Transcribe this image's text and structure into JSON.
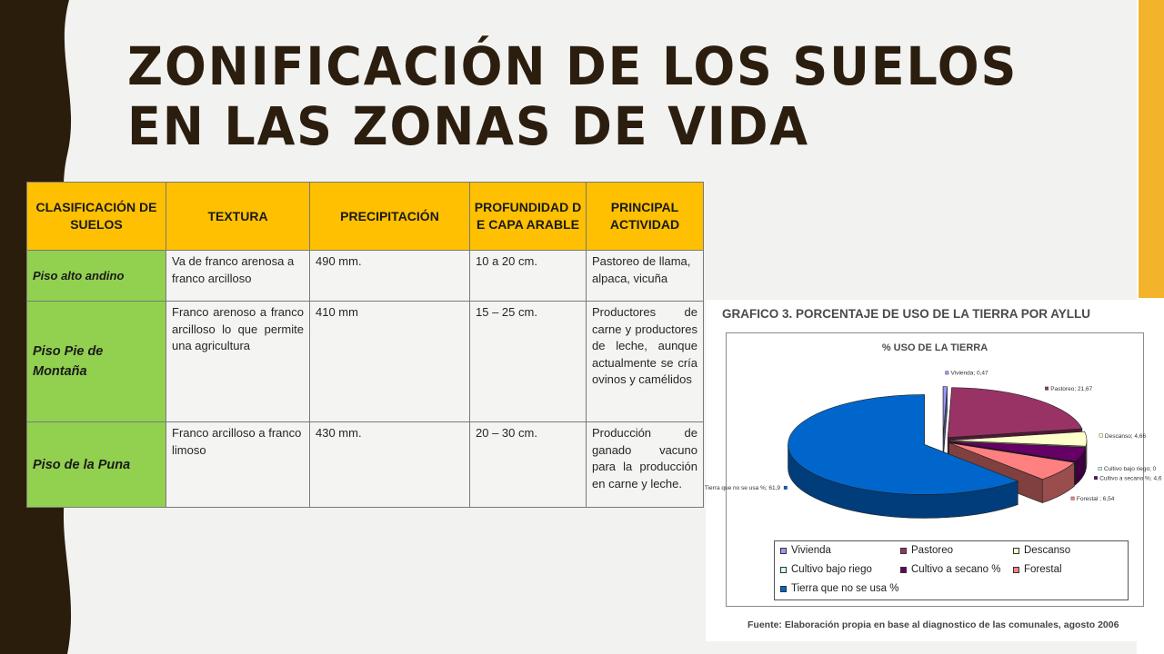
{
  "title": "Zonificación de los suelos en las zonas de vida",
  "table": {
    "headers": [
      "CLASIFICACIÓN DE SUELOS",
      "TEXTURA",
      "PRECIPITACIÓN",
      "PROFUNDIDAD DE CAPA ARABLE",
      "PRINCIPAL ACTIVIDAD"
    ],
    "rows": [
      {
        "clasificacion": "Piso alto andino",
        "textura": "Va de franco arenosa a franco arcilloso",
        "precipitacion": "490 mm.",
        "profundidad": "10 a 20 cm.",
        "actividad": "Pastoreo de llama, alpaca, vicuña"
      },
      {
        "clasificacion": "Piso Pie de Montaña",
        "textura": "Franco arenoso a franco arcilloso lo que permite una agricultura",
        "precipitacion": "410 mm",
        "profundidad": "15 – 25 cm.",
        "actividad": "Productores de carne y productores de leche, aunque actualmente se cría ovinos y camélidos"
      },
      {
        "clasificacion": "Piso de la Puna",
        "textura": "Franco arcilloso a franco limoso",
        "precipitacion": "430 mm.",
        "profundidad": "20 – 30 cm.",
        "actividad": "Producción de ganado vacuno para la producción en carne y leche."
      }
    ]
  },
  "chart_data": {
    "type": "pie",
    "title": "GRAFICO 3. PORCENTAJE DE USO DE LA TIERRA POR AYLLU",
    "subtitle": "% USO DE LA TIERRA",
    "slices": [
      {
        "name": "Vivienda",
        "value": 0.47,
        "label": "Vivienda; 0,47",
        "color": "#9999ff"
      },
      {
        "name": "Pastoreo",
        "value": 21.67,
        "label": "Pastoreo; 21,67",
        "color": "#993366"
      },
      {
        "name": "Descanso",
        "value": 4.66,
        "label": "Descanso; 4,66",
        "color": "#ffffcc"
      },
      {
        "name": "Cultivo bajo riego",
        "value": 0,
        "label": "Cultivo bajo riego; 0",
        "color": "#ccffff"
      },
      {
        "name": "Cultivo a secano %",
        "value": 4.6,
        "label": "Cultivo a secano %; 4,6",
        "color": "#660066"
      },
      {
        "name": "Forestal",
        "value": 6.54,
        "label": "Forestal ; 6,54",
        "color": "#ff8080"
      },
      {
        "name": "Tierra que no se usa %",
        "value": 61.9,
        "label": "Tierra que no se usa %; 61,9",
        "color": "#0066cc"
      }
    ],
    "legend_position": "bottom",
    "source": "Fuente: Elaboración propia en base al diagnostico de las comunales, agosto 2006"
  }
}
